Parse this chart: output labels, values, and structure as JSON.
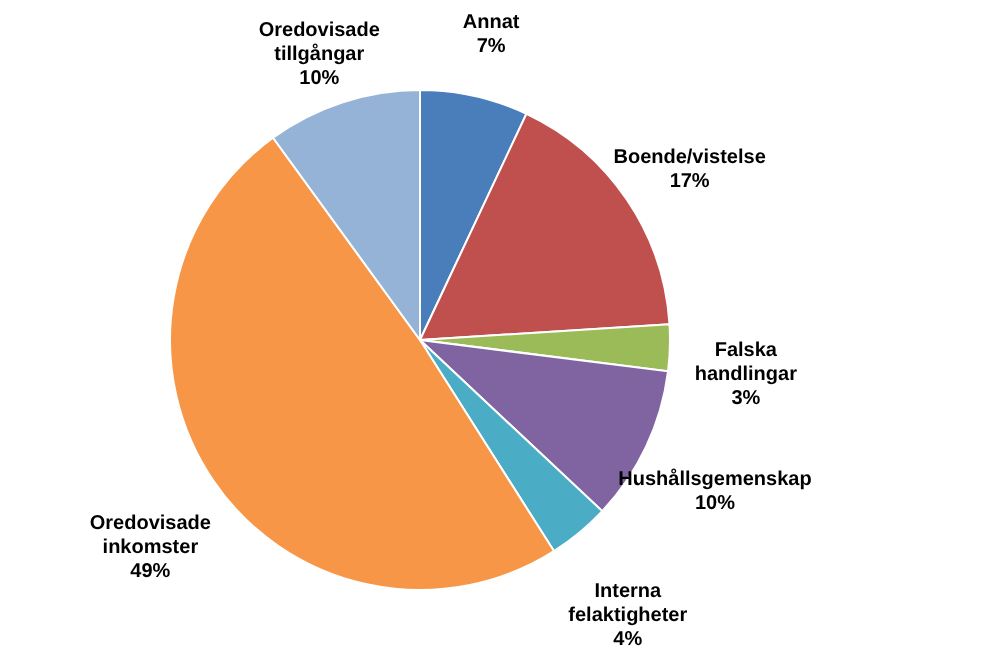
{
  "chart_data": {
    "type": "pie",
    "categories": [
      "Annat",
      "Boende/vistelse",
      "Falska handlingar",
      "Hushållsgemenskap",
      "Interna felaktigheter",
      "Oredovisade inkomster",
      "Oredovisade tillgångar"
    ],
    "values": [
      7,
      17,
      3,
      10,
      4,
      49,
      10
    ],
    "value_labels": [
      "7%",
      "17%",
      "3%",
      "10%",
      "4%",
      "49%",
      "10%"
    ],
    "colors": [
      "#4a7ebb",
      "#c0504d",
      "#9bbb59",
      "#8064a2",
      "#4bacc6",
      "#f79646",
      "#95b3d7"
    ]
  }
}
